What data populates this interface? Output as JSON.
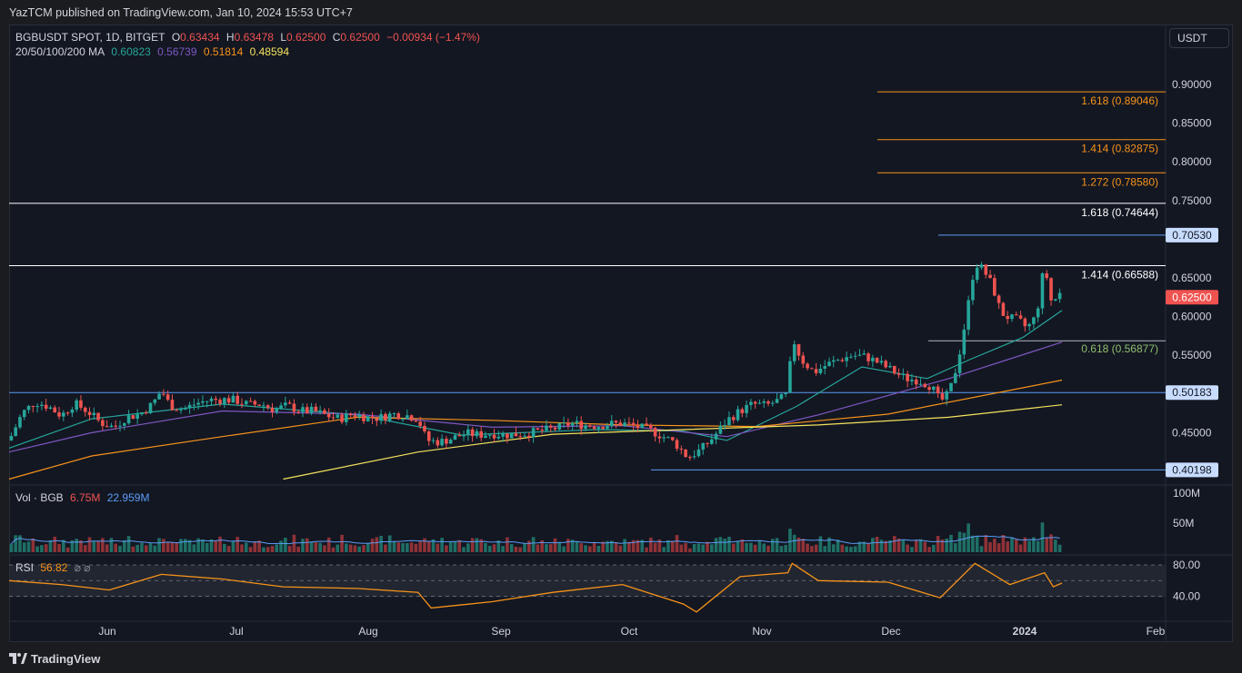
{
  "header": {
    "published": "YazTCM published on TradingView.com, Jan 10, 2024 15:53 UTC+7"
  },
  "legend": {
    "symbol": "BGBUSDT SPOT, 1D, BITGET",
    "o_label": "O",
    "o": "0.63434",
    "h_label": "H",
    "h": "0.63478",
    "l_label": "L",
    "l": "0.62500",
    "c_label": "C",
    "c": "0.62500",
    "change": "−0.00934 (−1.47%)",
    "ma_label": "20/50/100/200 MA",
    "ma20": "0.60823",
    "ma50": "0.56739",
    "ma100": "0.51814",
    "ma200": "0.48594",
    "vol_label": "Vol · BGB",
    "vol1": "6.75M",
    "vol2": "22.959M",
    "rsi_label": "RSI",
    "rsi_value": "56.82"
  },
  "currency": "USDT",
  "colors": {
    "up": "#26a69a",
    "down": "#ef5350",
    "ma20": "#26a69a",
    "ma50": "#7e57c2",
    "ma100": "#f7931a",
    "ma200": "#f5e35c",
    "fib": "#f7931a",
    "hline": "#ffffff",
    "level": "#5b9cf6",
    "rsi": "#f7931a"
  },
  "footer": {
    "brand": "TradingView",
    "icon": "tradingview-logo-icon"
  },
  "chart_data": {
    "type": "candlestick",
    "price_axis_ticks": [
      "0.90000",
      "0.85000",
      "0.80000",
      "0.75000",
      "0.65000",
      "0.60000",
      "0.55000",
      "0.45000"
    ],
    "price_ylim": [
      0.39,
      0.92
    ],
    "time_axis_ticks": [
      "Jun",
      "Jul",
      "Aug",
      "Sep",
      "Oct",
      "Nov",
      "Dec",
      "2024",
      "Feb"
    ],
    "volume_axis_ticks": [
      "100M",
      "50M"
    ],
    "rsi_axis_ticks": [
      "80.00",
      "40.00"
    ],
    "last_price": {
      "value": 0.625,
      "label": "0.62500"
    },
    "horizontal_levels": [
      {
        "value": 0.7053,
        "label": "0.70530"
      },
      {
        "value": 0.50183,
        "label": "0.50183"
      },
      {
        "value": 0.40198,
        "label": "0.40198"
      }
    ],
    "white_lines": [
      {
        "value": 0.74644,
        "label": "1.618 (0.74644)"
      },
      {
        "value": 0.66588,
        "label": "1.414 (0.66588)"
      }
    ],
    "fib_extensions": [
      {
        "value": 0.89046,
        "label": "1.618 (0.89046)"
      },
      {
        "value": 0.82875,
        "label": "1.414 (0.82875)"
      },
      {
        "value": 0.7858,
        "label": "1.272 (0.78580)"
      }
    ],
    "fib_retracement": {
      "value": 0.56877,
      "label": "0.618 (0.56877)"
    },
    "close_path": [
      [
        "2023-05-13",
        0.44
      ],
      [
        "2023-05-16",
        0.475
      ],
      [
        "2023-05-19",
        0.49
      ],
      [
        "2023-05-22",
        0.484
      ],
      [
        "2023-05-25",
        0.472
      ],
      [
        "2023-05-28",
        0.488
      ],
      [
        "2023-05-31",
        0.478
      ],
      [
        "2023-06-03",
        0.463
      ],
      [
        "2023-06-06",
        0.457
      ],
      [
        "2023-06-09",
        0.47
      ],
      [
        "2023-06-12",
        0.474
      ],
      [
        "2023-06-15",
        0.487
      ],
      [
        "2023-06-17",
        0.505
      ],
      [
        "2023-06-19",
        0.485
      ],
      [
        "2023-06-22",
        0.48
      ],
      [
        "2023-06-25",
        0.488
      ],
      [
        "2023-06-28",
        0.492
      ],
      [
        "2023-07-01",
        0.493
      ],
      [
        "2023-07-04",
        0.492
      ],
      [
        "2023-07-07",
        0.486
      ],
      [
        "2023-07-10",
        0.487
      ],
      [
        "2023-07-13",
        0.48
      ],
      [
        "2023-07-16",
        0.485
      ],
      [
        "2023-07-19",
        0.478
      ],
      [
        "2023-07-22",
        0.478
      ],
      [
        "2023-07-25",
        0.472
      ],
      [
        "2023-07-28",
        0.468
      ],
      [
        "2023-07-31",
        0.474
      ],
      [
        "2023-08-03",
        0.47
      ],
      [
        "2023-08-06",
        0.469
      ],
      [
        "2023-08-09",
        0.474
      ],
      [
        "2023-08-12",
        0.473
      ],
      [
        "2023-08-15",
        0.468
      ],
      [
        "2023-08-17",
        0.44
      ],
      [
        "2023-08-20",
        0.438
      ],
      [
        "2023-08-23",
        0.443
      ],
      [
        "2023-08-26",
        0.449
      ],
      [
        "2023-08-29",
        0.447
      ],
      [
        "2023-09-01",
        0.449
      ],
      [
        "2023-09-04",
        0.447
      ],
      [
        "2023-09-07",
        0.448
      ],
      [
        "2023-09-10",
        0.45
      ],
      [
        "2023-09-13",
        0.453
      ],
      [
        "2023-09-16",
        0.456
      ],
      [
        "2023-09-19",
        0.462
      ],
      [
        "2023-09-22",
        0.46
      ],
      [
        "2023-09-25",
        0.459
      ],
      [
        "2023-09-28",
        0.461
      ],
      [
        "2023-10-01",
        0.462
      ],
      [
        "2023-10-04",
        0.458
      ],
      [
        "2023-10-07",
        0.454
      ],
      [
        "2023-10-10",
        0.446
      ],
      [
        "2023-10-13",
        0.437
      ],
      [
        "2023-10-16",
        0.418
      ],
      [
        "2023-10-19",
        0.428
      ],
      [
        "2023-10-22",
        0.445
      ],
      [
        "2023-10-25",
        0.466
      ],
      [
        "2023-10-28",
        0.478
      ],
      [
        "2023-10-31",
        0.487
      ],
      [
        "2023-11-03",
        0.485
      ],
      [
        "2023-11-06",
        0.492
      ],
      [
        "2023-11-08",
        0.5
      ],
      [
        "2023-11-09",
        0.574
      ],
      [
        "2023-11-11",
        0.545
      ],
      [
        "2023-11-14",
        0.528
      ],
      [
        "2023-11-17",
        0.538
      ],
      [
        "2023-11-20",
        0.545
      ],
      [
        "2023-11-23",
        0.55
      ],
      [
        "2023-11-26",
        0.548
      ],
      [
        "2023-11-29",
        0.54
      ],
      [
        "2023-12-02",
        0.53
      ],
      [
        "2023-12-05",
        0.52
      ],
      [
        "2023-12-08",
        0.518
      ],
      [
        "2023-12-11",
        0.51
      ],
      [
        "2023-12-13",
        0.49
      ],
      [
        "2023-12-15",
        0.5
      ],
      [
        "2023-12-17",
        0.54
      ],
      [
        "2023-12-19",
        0.6
      ],
      [
        "2023-12-21",
        0.67
      ],
      [
        "2023-12-23",
        0.66
      ],
      [
        "2023-12-25",
        0.64
      ],
      [
        "2023-12-27",
        0.605
      ],
      [
        "2023-12-29",
        0.598
      ],
      [
        "2023-12-31",
        0.595
      ],
      [
        "2024-01-02",
        0.585
      ],
      [
        "2024-01-04",
        0.6
      ],
      [
        "2024-01-05",
        0.63
      ],
      [
        "2024-01-06",
        0.672
      ],
      [
        "2024-01-07",
        0.63
      ],
      [
        "2024-01-08",
        0.612
      ],
      [
        "2024-01-09",
        0.634
      ],
      [
        "2024-01-10",
        0.625
      ]
    ],
    "ma_paths": {
      "ma20": [
        [
          "2023-05-13",
          0.43
        ],
        [
          "2023-06-01",
          0.468
        ],
        [
          "2023-07-01",
          0.487
        ],
        [
          "2023-08-01",
          0.473
        ],
        [
          "2023-08-25",
          0.447
        ],
        [
          "2023-09-25",
          0.454
        ],
        [
          "2023-10-15",
          0.452
        ],
        [
          "2023-10-25",
          0.44
        ],
        [
          "2023-11-10",
          0.484
        ],
        [
          "2023-11-25",
          0.535
        ],
        [
          "2023-12-10",
          0.52
        ],
        [
          "2023-12-20",
          0.545
        ],
        [
          "2024-01-01",
          0.573
        ],
        [
          "2024-01-10",
          0.608
        ]
      ],
      "ma50": [
        [
          "2023-05-13",
          0.425
        ],
        [
          "2023-06-01",
          0.45
        ],
        [
          "2023-07-01",
          0.478
        ],
        [
          "2023-08-01",
          0.474
        ],
        [
          "2023-09-01",
          0.457
        ],
        [
          "2023-10-01",
          0.459
        ],
        [
          "2023-10-25",
          0.445
        ],
        [
          "2023-11-15",
          0.473
        ],
        [
          "2023-12-15",
          0.52
        ],
        [
          "2024-01-10",
          0.567
        ]
      ],
      "ma100": [
        [
          "2023-05-13",
          0.39
        ],
        [
          "2023-06-01",
          0.42
        ],
        [
          "2023-07-01",
          0.445
        ],
        [
          "2023-08-01",
          0.47
        ],
        [
          "2023-09-01",
          0.466
        ],
        [
          "2023-10-01",
          0.46
        ],
        [
          "2023-11-01",
          0.458
        ],
        [
          "2023-12-01",
          0.474
        ],
        [
          "2024-01-10",
          0.518
        ]
      ],
      "ma200": [
        [
          "2023-07-15",
          0.39
        ],
        [
          "2023-08-15",
          0.425
        ],
        [
          "2023-09-15",
          0.448
        ],
        [
          "2023-10-15",
          0.454
        ],
        [
          "2023-11-15",
          0.46
        ],
        [
          "2023-12-15",
          0.47
        ],
        [
          "2024-01-10",
          0.486
        ]
      ]
    },
    "rsi_path": [
      [
        "2023-05-13",
        60
      ],
      [
        "2023-05-25",
        55
      ],
      [
        "2023-06-05",
        48
      ],
      [
        "2023-06-17",
        68
      ],
      [
        "2023-07-01",
        62
      ],
      [
        "2023-07-15",
        52
      ],
      [
        "2023-08-01",
        50
      ],
      [
        "2023-08-15",
        45
      ],
      [
        "2023-08-18",
        25
      ],
      [
        "2023-09-01",
        33
      ],
      [
        "2023-09-15",
        45
      ],
      [
        "2023-10-01",
        55
      ],
      [
        "2023-10-15",
        30
      ],
      [
        "2023-10-18",
        20
      ],
      [
        "2023-10-28",
        65
      ],
      [
        "2023-11-08",
        70
      ],
      [
        "2023-11-09",
        82
      ],
      [
        "2023-11-15",
        60
      ],
      [
        "2023-12-01",
        58
      ],
      [
        "2023-12-13",
        38
      ],
      [
        "2023-12-21",
        82
      ],
      [
        "2023-12-29",
        55
      ],
      [
        "2024-01-06",
        70
      ],
      [
        "2024-01-08",
        52
      ],
      [
        "2024-01-10",
        56.82
      ]
    ]
  }
}
